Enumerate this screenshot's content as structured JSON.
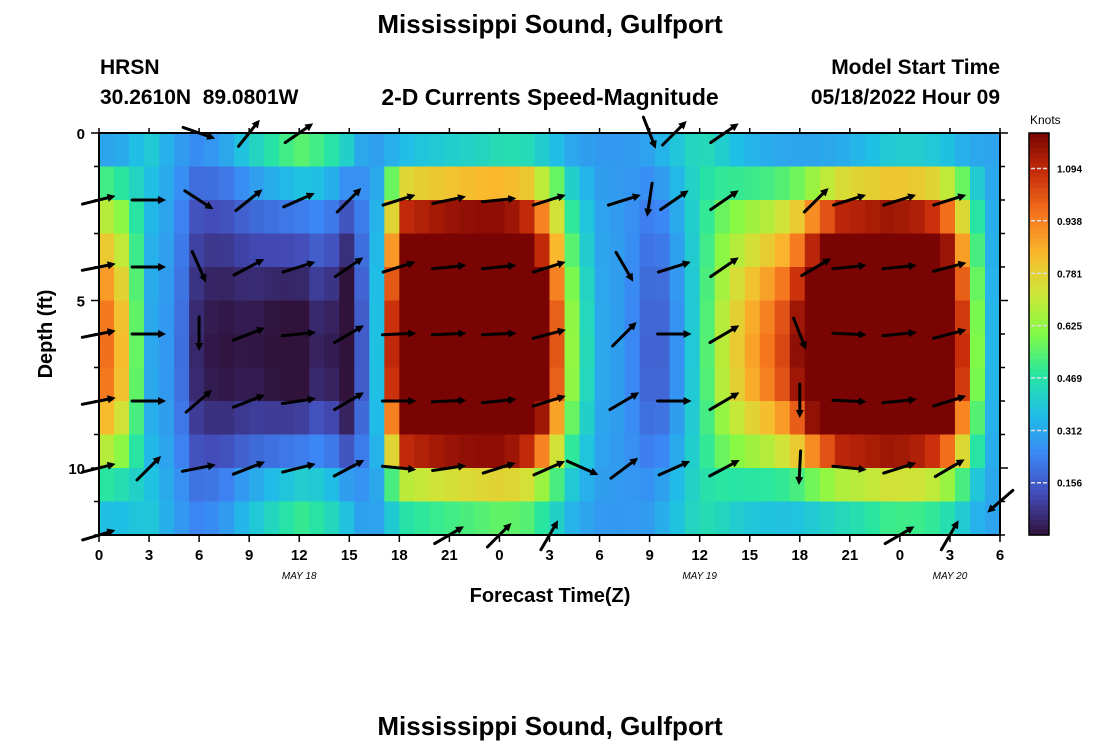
{
  "chart_data": {
    "type": "heatmap",
    "title": "Mississippi Sound, Gulfport",
    "footer_title": "Mississippi Sound, Gulfport",
    "station": "HRSN",
    "location": "30.2610N  89.0801W",
    "subtitle": "2-D Currents Speed-Magnitude",
    "model_start_label": "Model Start Time",
    "model_start_value": "05/18/2022 Hour 09",
    "xlabel": "Forecast Time(Z)",
    "ylabel": "Depth (ft)",
    "x_hours_range": [
      0,
      54
    ],
    "ylim": [
      0,
      12
    ],
    "x_ticks": [
      "0",
      "3",
      "6",
      "9",
      "12",
      "15",
      "18",
      "21",
      "0",
      "3",
      "6",
      "9",
      "12",
      "15",
      "18",
      "21",
      "0",
      "3",
      "6"
    ],
    "x_tick_hours": [
      0,
      3,
      6,
      9,
      12,
      15,
      18,
      21,
      24,
      27,
      30,
      33,
      36,
      39,
      42,
      45,
      48,
      51,
      54
    ],
    "y_ticks": [
      "0",
      "5",
      "10"
    ],
    "y_tick_values": [
      0,
      5,
      10
    ],
    "date_labels": [
      {
        "text": "MAY 18",
        "hour": 12
      },
      {
        "text": "MAY 19",
        "hour": 36
      },
      {
        "text": "MAY 20",
        "hour": 51
      }
    ],
    "colorbar": {
      "label": "Knots",
      "min": 0.0,
      "max": 1.2,
      "ticks": [
        "1.094",
        "0.938",
        "0.781",
        "0.625",
        "0.469",
        "0.312",
        "0.156"
      ],
      "tick_values": [
        1.094,
        0.938,
        0.781,
        0.625,
        0.469,
        0.312,
        0.156
      ]
    },
    "speed_profile": {
      "hours": [
        0,
        1.5,
        3,
        4.5,
        6,
        7.5,
        9,
        10.5,
        12,
        13.5,
        15,
        16,
        17,
        18,
        19.5,
        21,
        22.5,
        24,
        25.5,
        27,
        28.5,
        30,
        31.5,
        33,
        34,
        35,
        36,
        37,
        38.5,
        40,
        41.5,
        43,
        44.5,
        46,
        47.5,
        49,
        50.5,
        52,
        53,
        54
      ],
      "surface": [
        0.72,
        0.6,
        0.35,
        0.28,
        0.12,
        0.13,
        0.18,
        0.2,
        0.22,
        0.25,
        0.13,
        0.25,
        0.38,
        1.08,
        1.12,
        1.15,
        1.17,
        1.17,
        1.12,
        0.85,
        0.45,
        0.3,
        0.28,
        0.22,
        0.25,
        0.35,
        0.45,
        0.55,
        0.62,
        0.68,
        0.75,
        0.95,
        1.1,
        1.12,
        1.15,
        1.12,
        1.05,
        0.7,
        0.35,
        0.3
      ],
      "bottom": [
        0.3,
        0.32,
        0.4,
        0.3,
        0.25,
        0.3,
        0.4,
        0.48,
        0.55,
        0.5,
        0.4,
        0.28,
        0.3,
        0.35,
        0.38,
        0.4,
        0.42,
        0.45,
        0.45,
        0.38,
        0.3,
        0.28,
        0.28,
        0.3,
        0.35,
        0.4,
        0.45,
        0.42,
        0.35,
        0.32,
        0.3,
        0.3,
        0.32,
        0.35,
        0.4,
        0.4,
        0.38,
        0.32,
        0.3,
        0.3
      ],
      "depth_scale": [
        0.0,
        0.55,
        1.0,
        1.3,
        1.55,
        1.7,
        1.75,
        1.7,
        1.4,
        1.0,
        0.45,
        0.15
      ]
    },
    "vectors": [
      {
        "hour": 0,
        "depth": 2,
        "u": 1,
        "v": 0.25
      },
      {
        "hour": 0,
        "depth": 4,
        "u": 1,
        "v": 0.2
      },
      {
        "hour": 0,
        "depth": 6,
        "u": 1,
        "v": 0.2
      },
      {
        "hour": 0,
        "depth": 8,
        "u": 1,
        "v": 0.2
      },
      {
        "hour": 0,
        "depth": 10,
        "u": 1,
        "v": 0.25
      },
      {
        "hour": 0,
        "depth": 12,
        "u": 1,
        "v": 0.3
      },
      {
        "hour": 3,
        "depth": 2,
        "u": 1,
        "v": 0
      },
      {
        "hour": 3,
        "depth": 4,
        "u": 1,
        "v": 0
      },
      {
        "hour": 3,
        "depth": 6,
        "u": 1,
        "v": 0
      },
      {
        "hour": 3,
        "depth": 8,
        "u": 1,
        "v": 0
      },
      {
        "hour": 3,
        "depth": 10,
        "u": 0.7,
        "v": 0.7
      },
      {
        "hour": 6,
        "depth": 0,
        "u": 1,
        "v": -0.35
      },
      {
        "hour": 6,
        "depth": 2,
        "u": 0.85,
        "v": -0.55
      },
      {
        "hour": 6,
        "depth": 4,
        "u": 0.4,
        "v": -0.9
      },
      {
        "hour": 6,
        "depth": 6,
        "u": 0,
        "v": -1
      },
      {
        "hour": 6,
        "depth": 8,
        "u": 0.7,
        "v": 0.6
      },
      {
        "hour": 6,
        "depth": 10,
        "u": 1,
        "v": 0.2
      },
      {
        "hour": 9,
        "depth": 0,
        "u": 0.6,
        "v": 0.75
      },
      {
        "hour": 9,
        "depth": 2,
        "u": 0.75,
        "v": 0.6
      },
      {
        "hour": 9,
        "depth": 4,
        "u": 0.85,
        "v": 0.45
      },
      {
        "hour": 9,
        "depth": 6,
        "u": 0.9,
        "v": 0.35
      },
      {
        "hour": 9,
        "depth": 8,
        "u": 0.9,
        "v": 0.35
      },
      {
        "hour": 9,
        "depth": 10,
        "u": 0.9,
        "v": 0.35
      },
      {
        "hour": 12,
        "depth": 0,
        "u": 0.8,
        "v": 0.55
      },
      {
        "hour": 12,
        "depth": 2,
        "u": 0.9,
        "v": 0.4
      },
      {
        "hour": 12,
        "depth": 4,
        "u": 0.95,
        "v": 0.3
      },
      {
        "hour": 12,
        "depth": 6,
        "u": 1,
        "v": 0.1
      },
      {
        "hour": 12,
        "depth": 8,
        "u": 1,
        "v": 0.15
      },
      {
        "hour": 12,
        "depth": 10,
        "u": 1,
        "v": 0.25
      },
      {
        "hour": 15,
        "depth": 2,
        "u": 0.7,
        "v": 0.7
      },
      {
        "hour": 15,
        "depth": 4,
        "u": 0.8,
        "v": 0.55
      },
      {
        "hour": 15,
        "depth": 6,
        "u": 0.85,
        "v": 0.5
      },
      {
        "hour": 15,
        "depth": 8,
        "u": 0.85,
        "v": 0.5
      },
      {
        "hour": 15,
        "depth": 10,
        "u": 0.85,
        "v": 0.45
      },
      {
        "hour": 18,
        "depth": 2,
        "u": 0.95,
        "v": 0.3
      },
      {
        "hour": 18,
        "depth": 4,
        "u": 0.95,
        "v": 0.3
      },
      {
        "hour": 18,
        "depth": 6,
        "u": 1,
        "v": 0.05
      },
      {
        "hour": 18,
        "depth": 8,
        "u": 1,
        "v": 0
      },
      {
        "hour": 18,
        "depth": 10,
        "u": 1,
        "v": -0.1
      },
      {
        "hour": 21,
        "depth": 2,
        "u": 0.95,
        "v": 0.2
      },
      {
        "hour": 21,
        "depth": 4,
        "u": 1,
        "v": 0.1
      },
      {
        "hour": 21,
        "depth": 6,
        "u": 1,
        "v": 0.05
      },
      {
        "hour": 21,
        "depth": 8,
        "u": 1,
        "v": 0.05
      },
      {
        "hour": 21,
        "depth": 10,
        "u": 1,
        "v": 0.15
      },
      {
        "hour": 21,
        "depth": 12,
        "u": 0.85,
        "v": 0.5
      },
      {
        "hour": 24,
        "depth": 2,
        "u": 1,
        "v": 0.1
      },
      {
        "hour": 24,
        "depth": 4,
        "u": 1,
        "v": 0.1
      },
      {
        "hour": 24,
        "depth": 6,
        "u": 1,
        "v": 0.05
      },
      {
        "hour": 24,
        "depth": 8,
        "u": 1,
        "v": 0.1
      },
      {
        "hour": 24,
        "depth": 10,
        "u": 0.95,
        "v": 0.3
      },
      {
        "hour": 24,
        "depth": 12,
        "u": 0.7,
        "v": 0.7
      },
      {
        "hour": 27,
        "depth": 2,
        "u": 0.95,
        "v": 0.3
      },
      {
        "hour": 27,
        "depth": 4,
        "u": 0.95,
        "v": 0.3
      },
      {
        "hour": 27,
        "depth": 6,
        "u": 0.95,
        "v": 0.25
      },
      {
        "hour": 27,
        "depth": 8,
        "u": 0.95,
        "v": 0.3
      },
      {
        "hour": 27,
        "depth": 10,
        "u": 0.9,
        "v": 0.4
      },
      {
        "hour": 27,
        "depth": 12,
        "u": 0.5,
        "v": 0.85
      },
      {
        "hour": 29,
        "depth": 10,
        "u": 0.9,
        "v": -0.4
      },
      {
        "hour": 31.5,
        "depth": 2,
        "u": 0.95,
        "v": 0.3
      },
      {
        "hour": 31.5,
        "depth": 4,
        "u": 0.5,
        "v": -0.85
      },
      {
        "hour": 31.5,
        "depth": 6,
        "u": 0.7,
        "v": 0.7
      },
      {
        "hour": 31.5,
        "depth": 8,
        "u": 0.85,
        "v": 0.5
      },
      {
        "hour": 31.5,
        "depth": 10,
        "u": 0.8,
        "v": 0.6
      },
      {
        "hour": 33,
        "depth": 0,
        "u": 0.35,
        "v": -0.9
      },
      {
        "hour": 33,
        "depth": 2,
        "u": -0.15,
        "v": -1
      },
      {
        "hour": 34.5,
        "depth": 0,
        "u": 0.7,
        "v": 0.7
      },
      {
        "hour": 34.5,
        "depth": 2,
        "u": 0.8,
        "v": 0.55
      },
      {
        "hour": 34.5,
        "depth": 4,
        "u": 0.95,
        "v": 0.3
      },
      {
        "hour": 34.5,
        "depth": 6,
        "u": 1,
        "v": 0
      },
      {
        "hour": 34.5,
        "depth": 8,
        "u": 1,
        "v": 0
      },
      {
        "hour": 34.5,
        "depth": 10,
        "u": 0.9,
        "v": 0.4
      },
      {
        "hour": 37.5,
        "depth": 0,
        "u": 0.8,
        "v": 0.55
      },
      {
        "hour": 37.5,
        "depth": 2,
        "u": 0.8,
        "v": 0.55
      },
      {
        "hour": 37.5,
        "depth": 4,
        "u": 0.8,
        "v": 0.55
      },
      {
        "hour": 37.5,
        "depth": 6,
        "u": 0.85,
        "v": 0.5
      },
      {
        "hour": 37.5,
        "depth": 8,
        "u": 0.85,
        "v": 0.5
      },
      {
        "hour": 37.5,
        "depth": 10,
        "u": 0.85,
        "v": 0.45
      },
      {
        "hour": 42,
        "depth": 6,
        "u": 0.35,
        "v": -0.9
      },
      {
        "hour": 42,
        "depth": 8,
        "u": 0,
        "v": -1
      },
      {
        "hour": 42,
        "depth": 10,
        "u": -0.05,
        "v": -1
      },
      {
        "hour": 43,
        "depth": 2,
        "u": 0.7,
        "v": 0.7
      },
      {
        "hour": 43,
        "depth": 4,
        "u": 0.85,
        "v": 0.5
      },
      {
        "hour": 45,
        "depth": 2,
        "u": 0.95,
        "v": 0.3
      },
      {
        "hour": 45,
        "depth": 4,
        "u": 1,
        "v": 0.1
      },
      {
        "hour": 45,
        "depth": 6,
        "u": 1,
        "v": -0.05
      },
      {
        "hour": 45,
        "depth": 8,
        "u": 1,
        "v": -0.05
      },
      {
        "hour": 45,
        "depth": 10,
        "u": 1,
        "v": -0.1
      },
      {
        "hour": 48,
        "depth": 2,
        "u": 0.95,
        "v": 0.3
      },
      {
        "hour": 48,
        "depth": 4,
        "u": 1,
        "v": 0.1
      },
      {
        "hour": 48,
        "depth": 6,
        "u": 1,
        "v": 0.1
      },
      {
        "hour": 48,
        "depth": 8,
        "u": 1,
        "v": 0.1
      },
      {
        "hour": 48,
        "depth": 10,
        "u": 0.95,
        "v": 0.3
      },
      {
        "hour": 48,
        "depth": 12,
        "u": 0.85,
        "v": 0.5
      },
      {
        "hour": 51,
        "depth": 2,
        "u": 0.95,
        "v": 0.3
      },
      {
        "hour": 51,
        "depth": 4,
        "u": 0.95,
        "v": 0.25
      },
      {
        "hour": 51,
        "depth": 6,
        "u": 0.95,
        "v": 0.25
      },
      {
        "hour": 51,
        "depth": 8,
        "u": 0.95,
        "v": 0.3
      },
      {
        "hour": 51,
        "depth": 10,
        "u": 0.85,
        "v": 0.5
      },
      {
        "hour": 51,
        "depth": 12,
        "u": 0.5,
        "v": 0.85
      },
      {
        "hour": 54,
        "depth": 11,
        "u": -0.75,
        "v": -0.65
      }
    ]
  }
}
